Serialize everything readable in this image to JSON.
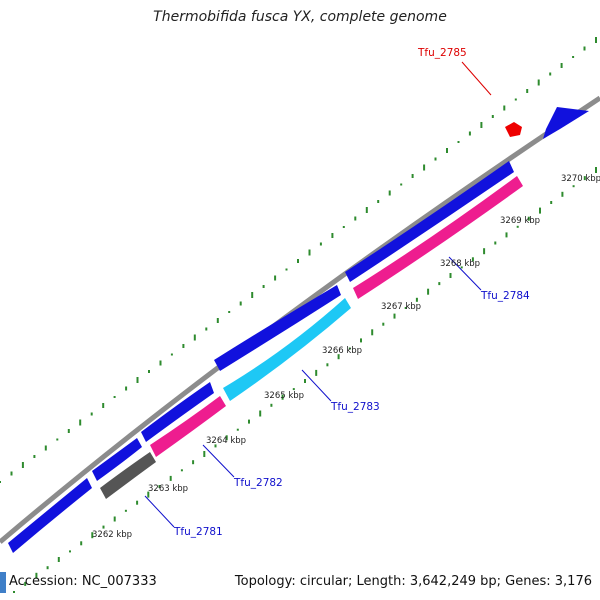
{
  "title": "Thermobifida fusca YX, complete genome",
  "accession_text": "Accession: NC_007333",
  "summary_text": "Topology: circular; Length: 3,642,249 bp; Genes: 3,176",
  "colors": {
    "backbone": "#8c8c8c",
    "forward_cds": "#1111dd",
    "reverse_cds": "#ee1d8f",
    "highlight_cds": "#1ec8f5",
    "pseudo_cds": "#555555",
    "marker": "#ee0000",
    "gc_dots": "#2e8b2e",
    "label_blue": "#1010cc",
    "label_red": "#dd0000"
  },
  "scale_labels": [
    "3262 kbp",
    "3263 kbp",
    "3264 kbp",
    "3265 kbp",
    "3266 kbp",
    "3267 kbp",
    "3268 kbp",
    "3269 kbp",
    "3270 kbp"
  ],
  "gene_labels": {
    "tfu_2781": "Tfu_2781",
    "tfu_2782": "Tfu_2782",
    "tfu_2783": "Tfu_2783",
    "tfu_2784": "Tfu_2784",
    "tfu_2785": "Tfu_2785"
  },
  "icons": {
    "marker": "red-pentagon-marker",
    "corner": "blue-corner-glyph"
  }
}
